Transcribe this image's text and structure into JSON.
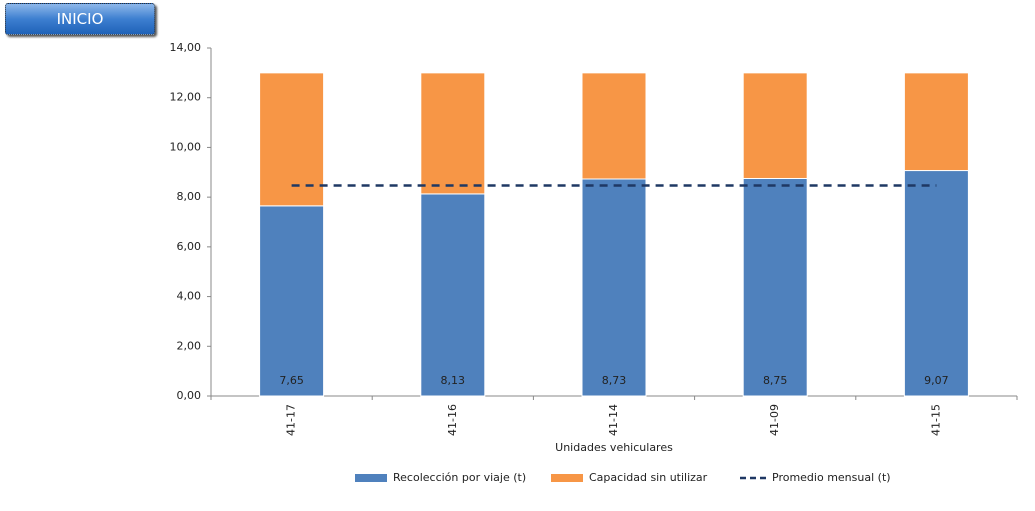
{
  "nav_button": "INICIO",
  "chart_data": {
    "type": "bar",
    "stacked": true,
    "x_label": "Unidades vehiculares",
    "categories": [
      "41-17",
      "41-16",
      "41-14",
      "41-09",
      "41-15"
    ],
    "series": [
      {
        "name": "Recolección por viaje (t)",
        "type": "bar",
        "color": "#4f81bd",
        "values": [
          7.65,
          8.13,
          8.73,
          8.75,
          9.07
        ],
        "value_labels": [
          "7,65",
          "8,13",
          "8,73",
          "8,75",
          "9,07"
        ]
      },
      {
        "name": "Capacidad sin utilizar",
        "type": "bar",
        "color": "#f79646",
        "values": [
          5.35,
          4.87,
          4.27,
          4.25,
          3.93
        ]
      },
      {
        "name": "Promedio mensual (t)",
        "type": "line",
        "color": "#1f3864",
        "dashed": true,
        "values": [
          8.47,
          8.47,
          8.47,
          8.47,
          8.47
        ]
      }
    ],
    "ylim": [
      0,
      14
    ],
    "yticks": [
      {
        "value": 0,
        "label": "0,00"
      },
      {
        "value": 2,
        "label": "2,00"
      },
      {
        "value": 4,
        "label": "4,00"
      },
      {
        "value": 6,
        "label": "6,00"
      },
      {
        "value": 8,
        "label": "8,00"
      },
      {
        "value": 10,
        "label": "10,00"
      },
      {
        "value": 12,
        "label": "12,00"
      },
      {
        "value": 14,
        "label": "14,00"
      }
    ],
    "grid": false,
    "legend": "bottom"
  }
}
